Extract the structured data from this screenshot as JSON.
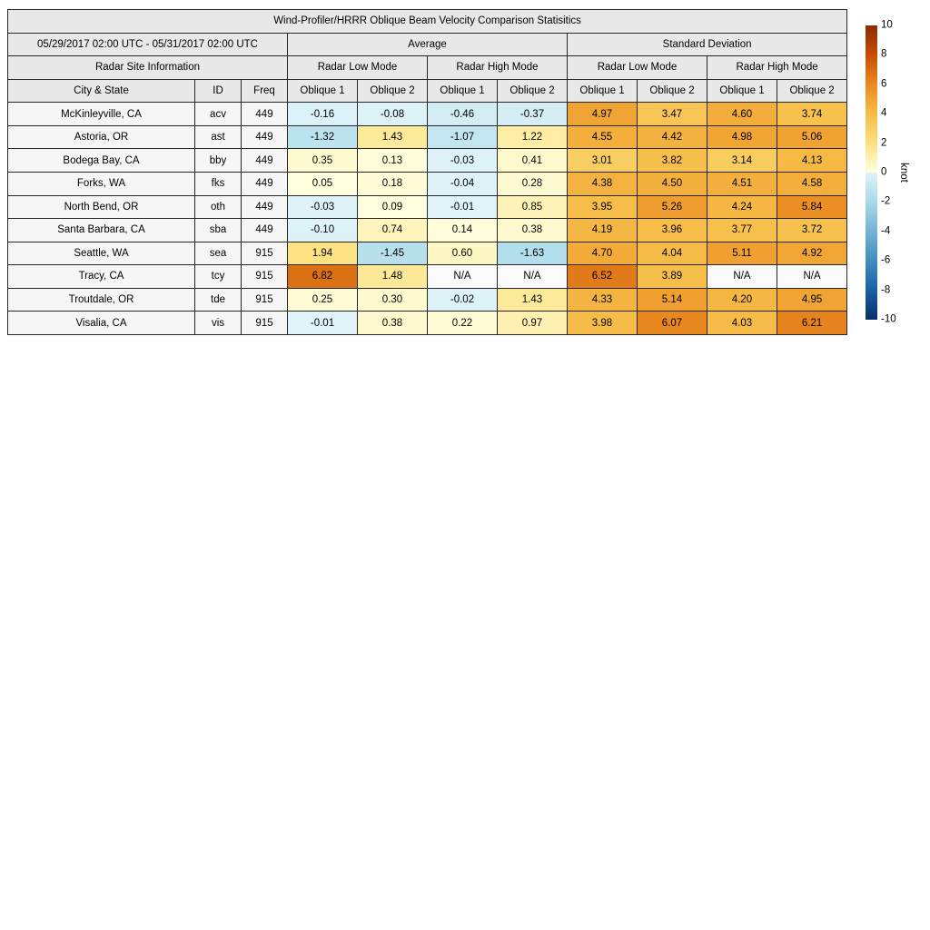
{
  "chart_data": {
    "type": "table",
    "title": "Wind-Profiler/HRRR Oblique Beam Velocity Comparison Statisitics",
    "period": "05/29/2017 02:00 UTC - 05/31/2017 02:00 UTC",
    "site_info_header": "Radar Site Information",
    "group_headers": [
      "Average",
      "Standard Deviation"
    ],
    "mode_headers": [
      "Radar Low Mode",
      "Radar High Mode",
      "Radar Low Mode",
      "Radar High Mode"
    ],
    "columns": [
      "City & State",
      "ID",
      "Freq",
      "Oblique 1",
      "Oblique 2",
      "Oblique 1",
      "Oblique 2",
      "Oblique 1",
      "Oblique 2",
      "Oblique 1",
      "Oblique 2"
    ],
    "rows": [
      {
        "city": "McKinleyville, CA",
        "id": "acv",
        "freq": "449",
        "values": [
          "-0.16",
          "-0.08",
          "-0.46",
          "-0.37",
          "4.97",
          "3.47",
          "4.60",
          "3.74"
        ]
      },
      {
        "city": "Astoria, OR",
        "id": "ast",
        "freq": "449",
        "values": [
          "-1.32",
          "1.43",
          "-1.07",
          "1.22",
          "4.55",
          "4.42",
          "4.98",
          "5.06"
        ]
      },
      {
        "city": "Bodega Bay, CA",
        "id": "bby",
        "freq": "449",
        "values": [
          "0.35",
          "0.13",
          "-0.03",
          "0.41",
          "3.01",
          "3.82",
          "3.14",
          "4.13"
        ]
      },
      {
        "city": "Forks, WA",
        "id": "fks",
        "freq": "449",
        "values": [
          "0.05",
          "0.18",
          "-0.04",
          "0.28",
          "4.38",
          "4.50",
          "4.51",
          "4.58"
        ]
      },
      {
        "city": "North Bend, OR",
        "id": "oth",
        "freq": "449",
        "values": [
          "-0.03",
          "0.09",
          "-0.01",
          "0.85",
          "3.95",
          "5.26",
          "4.24",
          "5.84"
        ]
      },
      {
        "city": "Santa Barbara, CA",
        "id": "sba",
        "freq": "449",
        "values": [
          "-0.10",
          "0.74",
          "0.14",
          "0.38",
          "4.19",
          "3.96",
          "3.77",
          "3.72"
        ]
      },
      {
        "city": "Seattle, WA",
        "id": "sea",
        "freq": "915",
        "values": [
          "1.94",
          "-1.45",
          "0.60",
          "-1.63",
          "4.70",
          "4.04",
          "5.11",
          "4.92"
        ]
      },
      {
        "city": "Tracy, CA",
        "id": "tcy",
        "freq": "915",
        "values": [
          "6.82",
          "1.48",
          "N/A",
          "N/A",
          "6.52",
          "3.89",
          "N/A",
          "N/A"
        ]
      },
      {
        "city": "Troutdale, OR",
        "id": "tde",
        "freq": "915",
        "values": [
          "0.25",
          "0.30",
          "-0.02",
          "1.43",
          "4.33",
          "5.14",
          "4.20",
          "4.95"
        ]
      },
      {
        "city": "Visalia, CA",
        "id": "vis",
        "freq": "915",
        "values": [
          "-0.01",
          "0.38",
          "0.22",
          "0.97",
          "3.98",
          "6.07",
          "4.03",
          "6.21"
        ]
      }
    ]
  },
  "colorbar": {
    "label": "knot",
    "min": -10,
    "max": 10,
    "ticks": [
      "10",
      "8",
      "6",
      "4",
      "2",
      "0",
      "-2",
      "-4",
      "-6",
      "-8",
      "-10"
    ],
    "stops": [
      {
        "v": -10,
        "c": "#08306b"
      },
      {
        "v": -8,
        "c": "#1c5fa5"
      },
      {
        "v": -6,
        "c": "#3f8ec0"
      },
      {
        "v": -4,
        "c": "#74b2d6"
      },
      {
        "v": -2,
        "c": "#a9d9e8"
      },
      {
        "v": -0.001,
        "c": "#dff3f8"
      },
      {
        "v": 0,
        "c": "#ffffe0"
      },
      {
        "v": 2,
        "c": "#fbe17f"
      },
      {
        "v": 4,
        "c": "#f6bc47"
      },
      {
        "v": 6,
        "c": "#ea8a20"
      },
      {
        "v": 8,
        "c": "#c94c02"
      },
      {
        "v": 10,
        "c": "#8c2b04"
      }
    ]
  },
  "colors": {
    "header_bg": "#e8e8e8",
    "info_cell_bg": "#f6f6f6",
    "na_cell_bg": "#fafafa",
    "border": "#262626"
  }
}
